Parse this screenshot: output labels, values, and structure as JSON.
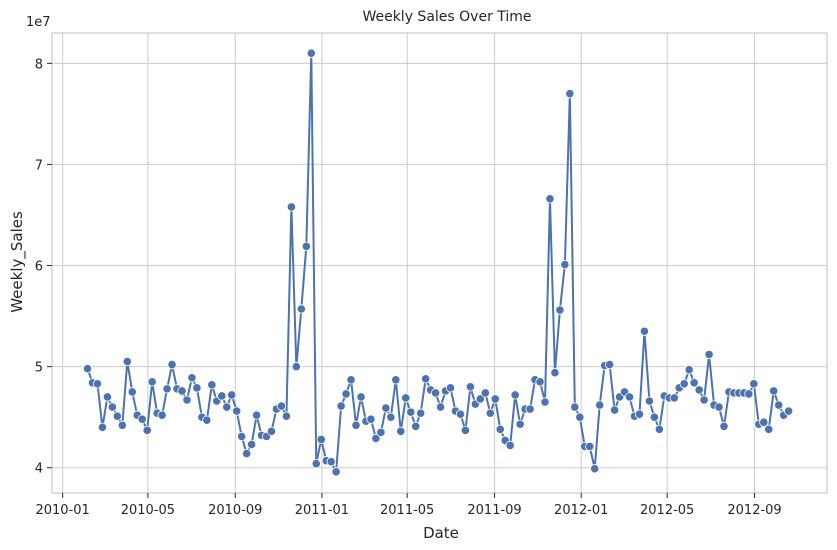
{
  "chart_data": {
    "type": "line",
    "title": "Weekly Sales Over Time",
    "xlabel": "Date",
    "ylabel": "Weekly_Sales",
    "y_scale_label": "1e7",
    "y_multiplier": 10000000,
    "grid": true,
    "legend": "none",
    "xlim": [
      "2009-12-17",
      "2012-12-12"
    ],
    "ylim": [
      3.75,
      8.3
    ],
    "x_ticks": [
      "2010-01",
      "2010-05",
      "2010-09",
      "2011-01",
      "2011-05",
      "2011-09",
      "2012-01",
      "2012-05",
      "2012-09"
    ],
    "y_ticks": [
      4,
      5,
      6,
      7,
      8
    ],
    "colors": {
      "series": "#4c72b0",
      "grid": "#cccccc",
      "text": "#262626"
    },
    "series": [
      {
        "start_date": "2010-02-05",
        "interval_days": 7,
        "values": [
          4.98,
          4.84,
          4.83,
          4.4,
          4.7,
          4.6,
          4.51,
          4.42,
          5.05,
          4.75,
          4.52,
          4.48,
          4.37,
          4.85,
          4.54,
          4.52,
          4.78,
          5.02,
          4.78,
          4.76,
          4.67,
          4.89,
          4.79,
          4.5,
          4.47,
          4.82,
          4.66,
          4.71,
          4.6,
          4.72,
          4.56,
          4.31,
          4.14,
          4.23,
          4.52,
          4.32,
          4.31,
          4.36,
          4.58,
          4.61,
          4.51,
          6.58,
          5.0,
          5.57,
          6.19,
          8.1,
          4.04,
          4.28,
          4.07,
          4.06,
          3.96,
          4.61,
          4.73,
          4.87,
          4.42,
          4.7,
          4.46,
          4.48,
          4.29,
          4.35,
          4.59,
          4.5,
          4.87,
          4.36,
          4.69,
          4.55,
          4.41,
          4.54,
          4.88,
          4.77,
          4.74,
          4.6,
          4.76,
          4.79,
          4.56,
          4.53,
          4.37,
          4.8,
          4.63,
          4.68,
          4.74,
          4.54,
          4.68,
          4.38,
          4.27,
          4.22,
          4.72,
          4.43,
          4.58,
          4.58,
          4.87,
          4.85,
          4.65,
          6.66,
          4.94,
          5.56,
          6.01,
          7.7,
          4.6,
          4.5,
          4.21,
          4.21,
          3.99,
          4.62,
          5.01,
          5.02,
          4.57,
          4.7,
          4.75,
          4.7,
          4.51,
          4.53,
          5.35,
          4.66,
          4.5,
          4.38,
          4.71,
          4.69,
          4.69,
          4.79,
          4.83,
          4.97,
          4.84,
          4.77,
          4.67,
          5.12,
          4.62,
          4.6,
          4.41,
          4.75,
          4.74,
          4.74,
          4.74,
          4.73,
          4.83,
          4.43,
          4.45,
          4.38,
          4.76,
          4.62,
          4.52,
          4.56
        ]
      }
    ]
  }
}
